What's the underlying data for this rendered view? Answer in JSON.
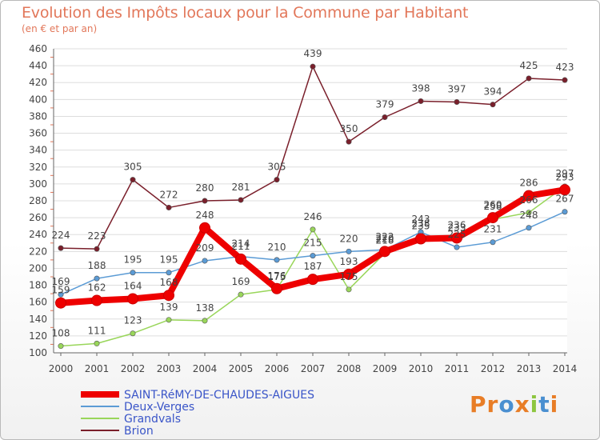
{
  "title": "Evolution des Impôts locaux pour la Commune par Habitant",
  "subtitle": "(en € et par an)",
  "logo_text": "Proxiti",
  "chart_data": {
    "type": "line",
    "title": "Evolution des Impôts locaux pour la Commune par Habitant",
    "subtitle": "(en € et par an)",
    "xlabel": "",
    "ylabel": "",
    "x": [
      "2000",
      "2001",
      "2002",
      "2003",
      "2004",
      "2005",
      "2006",
      "2007",
      "2008",
      "2009",
      "2010",
      "2011",
      "2012",
      "2013",
      "2014"
    ],
    "ylim": [
      100,
      460
    ],
    "yticks": [
      100,
      120,
      140,
      160,
      180,
      200,
      220,
      240,
      260,
      280,
      300,
      320,
      340,
      360,
      380,
      400,
      420,
      440,
      460
    ],
    "grid": "horizontal",
    "legend": "bottom-left",
    "series": [
      {
        "name": "SAINT-RéMY-DE-CHAUDES-AIGUES",
        "color": "#ee0000",
        "values": [
          159,
          162,
          164,
          168,
          248,
          211,
          176,
          187,
          193,
          220,
          235,
          236,
          260,
          286,
          293
        ]
      },
      {
        "name": "Deux-Verges",
        "color": "#5b9bd5",
        "values": [
          169,
          188,
          195,
          195,
          209,
          214,
          210,
          215,
          220,
          222,
          243,
          225,
          231,
          248,
          267
        ]
      },
      {
        "name": "Grandvals",
        "color": "#99d65a",
        "values": [
          108,
          111,
          123,
          139,
          138,
          169,
          175,
          246,
          175,
          218,
          238,
          233,
          258,
          266,
          297
        ]
      },
      {
        "name": "Brion",
        "color": "#7a1f2b",
        "values": [
          224,
          223,
          305,
          272,
          280,
          281,
          305,
          439,
          350,
          379,
          398,
          397,
          394,
          425,
          423
        ]
      }
    ]
  }
}
